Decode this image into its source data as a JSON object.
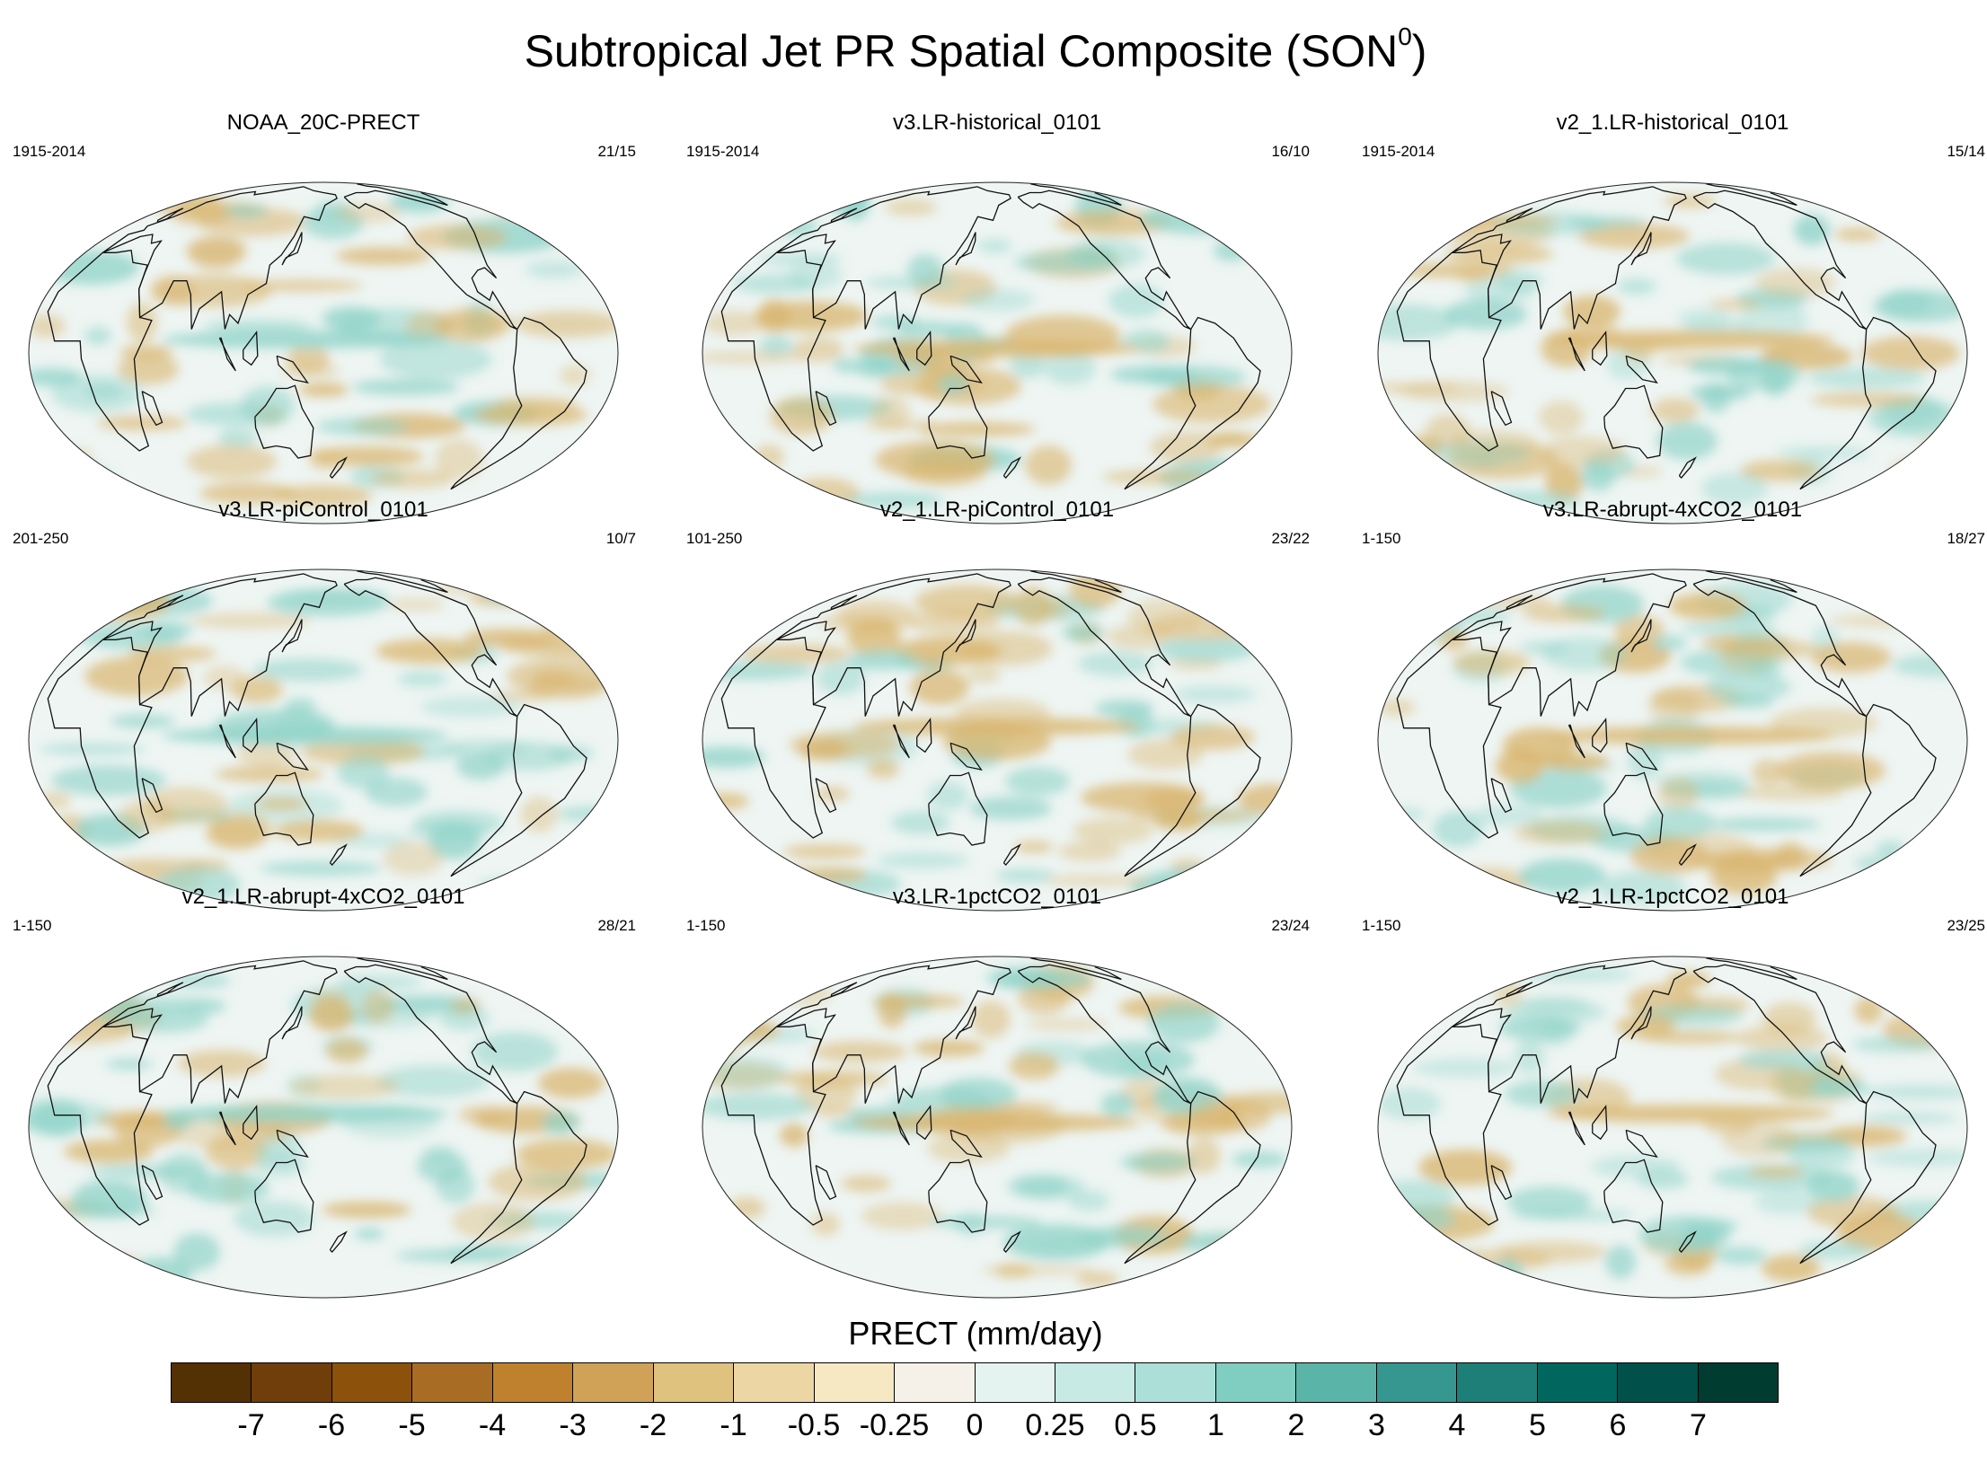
{
  "title": {
    "text": "Subtropical Jet PR Spatial Composite (SON",
    "superscript": "0",
    "close": ")"
  },
  "panels": [
    {
      "name": "NOAA_20C-PRECT",
      "years": "1915-2014",
      "ratio": "21/15"
    },
    {
      "name": "v3.LR-historical_0101",
      "years": "1915-2014",
      "ratio": "16/10"
    },
    {
      "name": "v2_1.LR-historical_0101",
      "years": "1915-2014",
      "ratio": "15/14"
    },
    {
      "name": "v3.LR-piControl_0101",
      "years": "201-250",
      "ratio": "10/7"
    },
    {
      "name": "v2_1.LR-piControl_0101",
      "years": "101-250",
      "ratio": "23/22"
    },
    {
      "name": "v3.LR-abrupt-4xCO2_0101",
      "years": "1-150",
      "ratio": "18/27"
    },
    {
      "name": "v2_1.LR-abrupt-4xCO2_0101",
      "years": "1-150",
      "ratio": "28/21"
    },
    {
      "name": "v3.LR-1pctCO2_0101",
      "years": "1-150",
      "ratio": "23/24"
    },
    {
      "name": "v2_1.LR-1pctCO2_0101",
      "years": "1-150",
      "ratio": "23/25"
    }
  ],
  "colorbar": {
    "title": "PRECT (mm/day)",
    "labels": [
      "-7",
      "-6",
      "-5",
      "-4",
      "-3",
      "-2",
      "-1",
      "-0.5",
      "-0.25",
      "0",
      "0.25",
      "0.5",
      "1",
      "2",
      "3",
      "4",
      "5",
      "6",
      "7"
    ],
    "colors": [
      "#543005",
      "#6f3e0b",
      "#8c510a",
      "#a86c24",
      "#bf812d",
      "#d0a257",
      "#dfc27d",
      "#ecd7a4",
      "#f6e8c3",
      "#f5f1e8",
      "#e4f2f0",
      "#c7eae5",
      "#abdfd8",
      "#80cdc1",
      "#5ab4a8",
      "#35978f",
      "#1d7f77",
      "#01665e",
      "#01504a",
      "#003c30"
    ]
  },
  "map": {
    "ocean_color": "#eef5f3",
    "wet_color": "#8fd3c8",
    "dry_color": "#d9b56e",
    "coast_color": "#111111"
  }
}
